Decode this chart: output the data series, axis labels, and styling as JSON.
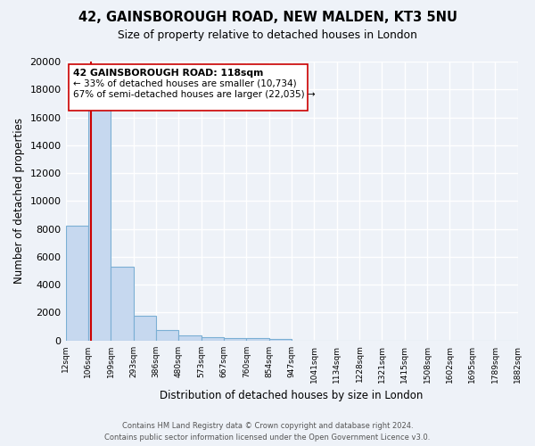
{
  "title": "42, GAINSBOROUGH ROAD, NEW MALDEN, KT3 5NU",
  "subtitle": "Size of property relative to detached houses in London",
  "xlabel": "Distribution of detached houses by size in London",
  "ylabel": "Number of detached properties",
  "bar_values": [
    8200,
    16600,
    5300,
    1800,
    750,
    350,
    250,
    150,
    150,
    100,
    0,
    0,
    0,
    0,
    0,
    0,
    0,
    0,
    0,
    0
  ],
  "bin_labels": [
    "12sqm",
    "106sqm",
    "199sqm",
    "293sqm",
    "386sqm",
    "480sqm",
    "573sqm",
    "667sqm",
    "760sqm",
    "854sqm",
    "947sqm",
    "1041sqm",
    "1134sqm",
    "1228sqm",
    "1321sqm",
    "1415sqm",
    "1508sqm",
    "1602sqm",
    "1695sqm",
    "1789sqm",
    "1882sqm"
  ],
  "bar_color": "#c6d8ef",
  "bar_edge_color": "#7bafd4",
  "property_line_color": "#cc0000",
  "annotation_line1": "42 GAINSBOROUGH ROAD: 118sqm",
  "annotation_line2": "← 33% of detached houses are smaller (10,734)",
  "annotation_line3": "67% of semi-detached houses are larger (22,035) →",
  "ylim": [
    0,
    20000
  ],
  "yticks": [
    0,
    2000,
    4000,
    6000,
    8000,
    10000,
    12000,
    14000,
    16000,
    18000,
    20000
  ],
  "footer_line1": "Contains HM Land Registry data © Crown copyright and database right 2024.",
  "footer_line2": "Contains public sector information licensed under the Open Government Licence v3.0.",
  "background_color": "#eef2f8",
  "grid_color": "#ffffff"
}
